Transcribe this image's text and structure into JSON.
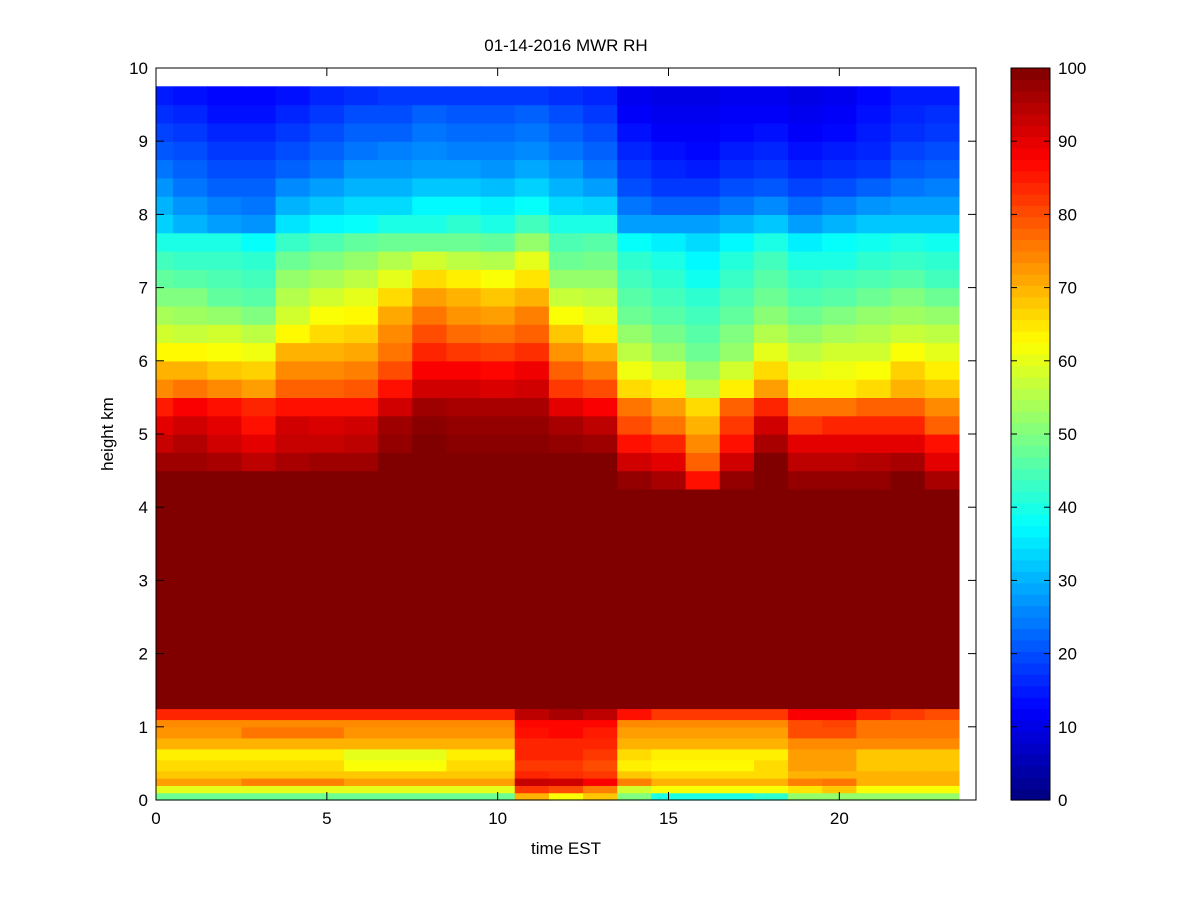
{
  "chart_data": {
    "type": "heatmap",
    "title": "01-14-2016 MWR RH",
    "xlabel": "time EST",
    "ylabel": "height km",
    "xlim": [
      0,
      24
    ],
    "ylim": [
      0,
      10
    ],
    "xticks": [
      "0",
      "5",
      "10",
      "15",
      "20"
    ],
    "yticks": [
      "0",
      "1",
      "2",
      "3",
      "4",
      "5",
      "6",
      "7",
      "8",
      "9",
      "10"
    ],
    "colormap": "jet",
    "colorbar": {
      "clim": [
        0,
        100
      ],
      "ticks": [
        "0",
        "10",
        "20",
        "30",
        "40",
        "50",
        "60",
        "70",
        "80",
        "90",
        "100"
      ]
    },
    "time_edges": [
      0,
      0.5,
      1.5,
      2.5,
      3.5,
      4.5,
      5.5,
      6.5,
      7.5,
      8.5,
      9.5,
      10.5,
      11.5,
      12.5,
      13.5,
      14.5,
      15.5,
      16.5,
      17.5,
      18.5,
      19.5,
      20.5,
      21.5,
      22.5,
      23.5
    ],
    "height_edges": [
      0,
      0.1,
      0.2,
      0.3,
      0.4,
      0.55,
      0.7,
      0.85,
      1.0,
      1.1,
      1.25,
      4.25,
      4.5,
      4.75,
      5.0,
      5.25,
      5.5,
      5.75,
      6.0,
      6.25,
      6.5,
      6.75,
      7.0,
      7.25,
      7.5,
      7.75,
      8.0,
      8.25,
      8.5,
      8.75,
      9.0,
      9.25,
      9.5,
      9.75
    ],
    "rh_by_column": [
      [
        48,
        60,
        72,
        68,
        66,
        64,
        70,
        73,
        74,
        84,
        100,
        100,
        97,
        93,
        90,
        85,
        74,
        70,
        63,
        58,
        54,
        50,
        47,
        44,
        40,
        33,
        30,
        27,
        24,
        21,
        19,
        17,
        15
      ],
      [
        48,
        60,
        72,
        68,
        66,
        64,
        70,
        73,
        74,
        84,
        100,
        100,
        97,
        95,
        92,
        88,
        76,
        70,
        63,
        57,
        53,
        50,
        46,
        43,
        40,
        30,
        27,
        24,
        22,
        20,
        18,
        16,
        14
      ],
      [
        48,
        60,
        72,
        68,
        66,
        64,
        70,
        73,
        74,
        84,
        100,
        100,
        96,
        92,
        90,
        86,
        74,
        68,
        62,
        58,
        52,
        47,
        45,
        43,
        40,
        28,
        25,
        22,
        20,
        18,
        16,
        14,
        13
      ],
      [
        48,
        60,
        75,
        68,
        66,
        64,
        70,
        76,
        74,
        84,
        100,
        100,
        94,
        90,
        86,
        84,
        72,
        67,
        61,
        56,
        50,
        46,
        44,
        42,
        38,
        27,
        24,
        22,
        20,
        18,
        16,
        14,
        13
      ],
      [
        48,
        60,
        75,
        68,
        66,
        64,
        70,
        76,
        74,
        84,
        100,
        100,
        96,
        93,
        92,
        86,
        78,
        74,
        70,
        63,
        58,
        55,
        52,
        48,
        43,
        35,
        30,
        26,
        22,
        20,
        18,
        16,
        14
      ],
      [
        48,
        60,
        75,
        68,
        66,
        64,
        70,
        76,
        74,
        84,
        100,
        100,
        97,
        93,
        91,
        86,
        78,
        74,
        70,
        66,
        62,
        58,
        54,
        50,
        45,
        37,
        32,
        28,
        24,
        22,
        20,
        18,
        16
      ],
      [
        48,
        60,
        72,
        68,
        62,
        60,
        70,
        73,
        74,
        84,
        100,
        100,
        97,
        94,
        92,
        86,
        79,
        75,
        71,
        67,
        63,
        60,
        56,
        52,
        47,
        38,
        34,
        30,
        27,
        24,
        22,
        20,
        17
      ],
      [
        48,
        60,
        72,
        68,
        62,
        60,
        70,
        73,
        74,
        84,
        100,
        100,
        100,
        98,
        97,
        92,
        86,
        80,
        76,
        74,
        71,
        66,
        60,
        55,
        48,
        40,
        34,
        30,
        27,
        25,
        22,
        20,
        18
      ],
      [
        48,
        60,
        72,
        68,
        62,
        60,
        70,
        73,
        74,
        84,
        100,
        100,
        100,
        100,
        99,
        97,
        92,
        88,
        84,
        80,
        76,
        72,
        66,
        58,
        48,
        40,
        37,
        32,
        28,
        26,
        24,
        22,
        18
      ],
      [
        48,
        60,
        72,
        68,
        66,
        64,
        70,
        73,
        74,
        84,
        100,
        100,
        100,
        99,
        98,
        96,
        92,
        88,
        82,
        77,
        73,
        70,
        64,
        56,
        48,
        42,
        37,
        32,
        28,
        25,
        23,
        21,
        18
      ],
      [
        48,
        60,
        72,
        68,
        66,
        64,
        70,
        73,
        74,
        84,
        100,
        100,
        100,
        99,
        98,
        96,
        91,
        87,
        81,
        76,
        72,
        68,
        62,
        55,
        47,
        40,
        36,
        31,
        27,
        25,
        23,
        21,
        18
      ],
      [
        70,
        82,
        93,
        84,
        82,
        84,
        84,
        86,
        87,
        94,
        100,
        100,
        100,
        99,
        98,
        96,
        92,
        89,
        83,
        78,
        75,
        70,
        65,
        60,
        52,
        44,
        38,
        33,
        29,
        26,
        24,
        22,
        18
      ],
      [
        62,
        80,
        92,
        83,
        82,
        84,
        84,
        87,
        87,
        96,
        100,
        100,
        100,
        98,
        96,
        90,
        82,
        78,
        73,
        68,
        62,
        57,
        52,
        48,
        45,
        40,
        34,
        30,
        27,
        24,
        22,
        20,
        17
      ],
      [
        68,
        75,
        88,
        82,
        80,
        82,
        84,
        85,
        87,
        94,
        100,
        100,
        100,
        97,
        94,
        88,
        80,
        75,
        70,
        64,
        60,
        56,
        52,
        49,
        46,
        40,
        33,
        28,
        24,
        22,
        20,
        18,
        16
      ],
      [
        50,
        58,
        75,
        68,
        64,
        66,
        70,
        72,
        74,
        86,
        100,
        98,
        92,
        86,
        80,
        76,
        66,
        61,
        56,
        52,
        48,
        46,
        44,
        42,
        38,
        28,
        24,
        20,
        18,
        16,
        14,
        12,
        11
      ],
      [
        40,
        62,
        70,
        66,
        63,
        64,
        70,
        72,
        74,
        82,
        100,
        96,
        90,
        84,
        76,
        72,
        64,
        58,
        52,
        49,
        46,
        44,
        42,
        40,
        36,
        28,
        22,
        18,
        16,
        14,
        12,
        11,
        10
      ],
      [
        40,
        62,
        70,
        66,
        63,
        64,
        70,
        72,
        74,
        82,
        100,
        86,
        78,
        74,
        70,
        66,
        56,
        52,
        48,
        46,
        44,
        42,
        39,
        37,
        34,
        28,
        22,
        18,
        15,
        13,
        12,
        11,
        10
      ],
      [
        40,
        62,
        70,
        66,
        63,
        64,
        70,
        72,
        74,
        82,
        100,
        98,
        92,
        86,
        82,
        78,
        64,
        58,
        52,
        50,
        47,
        45,
        43,
        41,
        37,
        30,
        24,
        20,
        17,
        15,
        13,
        12,
        11
      ],
      [
        42,
        62,
        70,
        66,
        66,
        64,
        70,
        72,
        74,
        82,
        100,
        100,
        100,
        96,
        92,
        84,
        72,
        66,
        60,
        55,
        51,
        48,
        46,
        44,
        40,
        32,
        26,
        21,
        18,
        16,
        14,
        12,
        11
      ],
      [
        52,
        65,
        75,
        70,
        72,
        72,
        74,
        80,
        80,
        88,
        100,
        98,
        94,
        90,
        82,
        76,
        64,
        60,
        56,
        52,
        48,
        45,
        43,
        40,
        36,
        28,
        23,
        19,
        16,
        14,
        12,
        11,
        10
      ],
      [
        52,
        68,
        76,
        70,
        72,
        72,
        74,
        80,
        81,
        88,
        100,
        98,
        94,
        90,
        84,
        76,
        64,
        61,
        58,
        54,
        50,
        46,
        44,
        40,
        38,
        30,
        25,
        20,
        17,
        15,
        13,
        12,
        11
      ],
      [
        52,
        62,
        70,
        70,
        68,
        68,
        74,
        76,
        76,
        84,
        100,
        98,
        95,
        90,
        84,
        78,
        66,
        62,
        58,
        55,
        52,
        48,
        45,
        42,
        39,
        32,
        27,
        22,
        18,
        16,
        15,
        14,
        13
      ],
      [
        52,
        62,
        70,
        70,
        68,
        68,
        74,
        76,
        76,
        82,
        100,
        100,
        96,
        90,
        84,
        78,
        70,
        67,
        62,
        57,
        53,
        50,
        46,
        43,
        40,
        32,
        28,
        24,
        21,
        19,
        17,
        16,
        15
      ],
      [
        52,
        62,
        70,
        70,
        68,
        68,
        74,
        76,
        76,
        80,
        100,
        96,
        90,
        86,
        78,
        74,
        68,
        64,
        60,
        56,
        52,
        48,
        44,
        42,
        39,
        32,
        28,
        25,
        22,
        20,
        18,
        17,
        15
      ]
    ]
  }
}
